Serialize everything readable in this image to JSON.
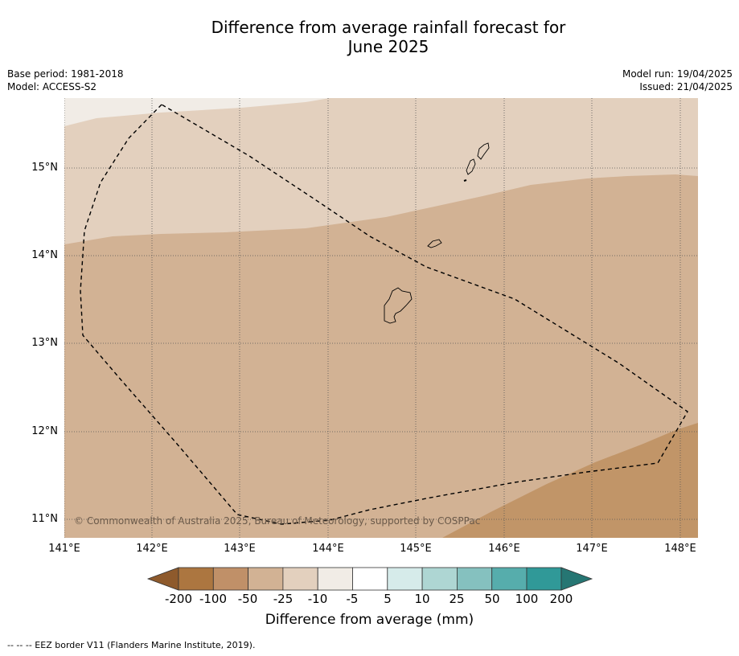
{
  "title_line1": "Difference from average rainfall forecast for",
  "title_line2": "June 2025",
  "meta": {
    "base_period": "Base period: 1981-2018",
    "model": "Model: ACCESS-S2",
    "model_run": "Model run: 19/04/2025",
    "issued": "Issued: 21/04/2025"
  },
  "map": {
    "lat_labels": [
      "15°N",
      "14°N",
      "13°N",
      "12°N",
      "11°N"
    ],
    "lon_labels": [
      "141°E",
      "142°E",
      "143°E",
      "144°E",
      "145°E",
      "146°E",
      "147°E",
      "148°E"
    ],
    "copyright": "© Commonwealth of Australia 2025, Bureau of Meteorology, supported by COSPPac",
    "colors": {
      "band_minus10": "#f1ece6",
      "band_minus25": "#e3d0be",
      "band_minus50": "#d2b294",
      "band_minus100": "#c19568"
    }
  },
  "colorbar": {
    "title": "Difference from average (mm)",
    "ticks": [
      "-200",
      "-100",
      "-50",
      "-25",
      "-10",
      "-5",
      "5",
      "10",
      "25",
      "50",
      "100",
      "200"
    ],
    "colors": [
      "#8e5a2c",
      "#ac7640",
      "#c09068",
      "#d2b294",
      "#e3d0be",
      "#f1ece6",
      "#ffffff",
      "#d6ebea",
      "#aed6d3",
      "#85c1bf",
      "#56adac",
      "#309998",
      "#267673"
    ]
  },
  "footnote": "--  --  -- EEZ border V11 (Flanders Marine Institute, 2019)."
}
